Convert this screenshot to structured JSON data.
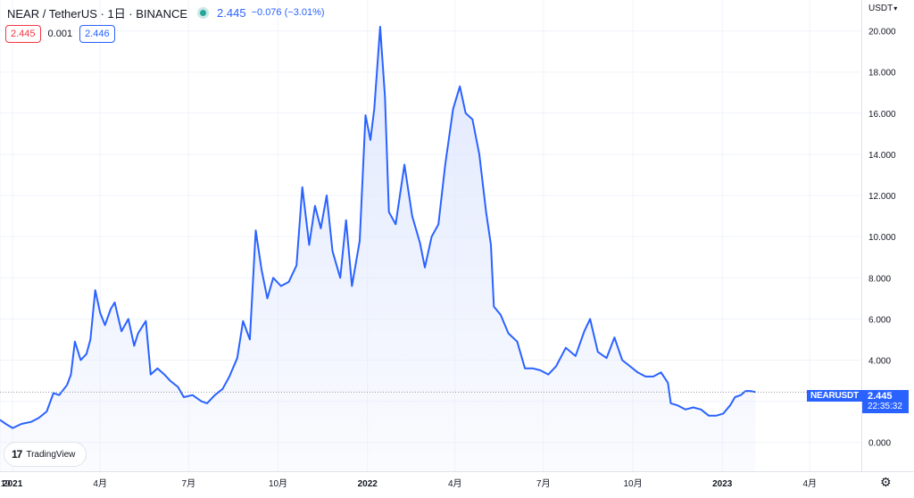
{
  "header": {
    "title": "NEAR / TetherUS · 1日 · BINANCE",
    "last": "2.445",
    "change": "−0.076 (−3.01%)",
    "bid": "2.445",
    "spread": "0.001",
    "ask": "2.446",
    "currency": "USDT"
  },
  "price_badge": {
    "symbol": "NEARUSDT",
    "price": "2.445",
    "countdown": "22:35:32"
  },
  "logo": {
    "mark": "17",
    "text": "TradingView"
  },
  "colors": {
    "line": "#2962ff",
    "fill": "#dfe7fd",
    "down": "#f23645",
    "live_dot": "#26a69a"
  },
  "icons": [
    "status-dot-icon",
    "currency-caret-icon",
    "tradingview-logo-icon",
    "settings-gear-icon"
  ],
  "chart_data": {
    "type": "area",
    "title": "NEAR / TetherUS · 1日 · BINANCE",
    "xlabel": "",
    "ylabel": "",
    "y_ticks": [
      "0.000",
      "2.000",
      "4.000",
      "6.000",
      "8.000",
      "10.000",
      "12.000",
      "14.000",
      "16.000",
      "18.000",
      "20.000"
    ],
    "ylim": [
      -1.4,
      21.5
    ],
    "x_ticks": [
      {
        "label": "19",
        "date": "2020-12-19"
      },
      {
        "label": "2021",
        "date": "2021-01-01"
      },
      {
        "label": "4月",
        "date": "2021-04-01"
      },
      {
        "label": "7月",
        "date": "2021-07-01"
      },
      {
        "label": "10月",
        "date": "2021-10-01"
      },
      {
        "label": "2022",
        "date": "2022-01-01"
      },
      {
        "label": "4月",
        "date": "2022-04-01"
      },
      {
        "label": "7月",
        "date": "2022-07-01"
      },
      {
        "label": "10月",
        "date": "2022-10-01"
      },
      {
        "label": "2023",
        "date": "2023-01-01"
      },
      {
        "label": "4月",
        "date": "2023-04-01"
      }
    ],
    "xlim": [
      "2020-12-19",
      "2023-05-24"
    ],
    "last_price": 2.445,
    "series": [
      {
        "values": [
          [
            "2020-12-19",
            1.1
          ],
          [
            "2020-12-25",
            0.9
          ],
          [
            "2021-01-01",
            0.7
          ],
          [
            "2021-01-10",
            0.9
          ],
          [
            "2021-01-20",
            1.0
          ],
          [
            "2021-01-28",
            1.2
          ],
          [
            "2021-02-05",
            1.5
          ],
          [
            "2021-02-12",
            2.4
          ],
          [
            "2021-02-18",
            2.3
          ],
          [
            "2021-02-26",
            2.8
          ],
          [
            "2021-03-02",
            3.3
          ],
          [
            "2021-03-06",
            4.9
          ],
          [
            "2021-03-12",
            4.0
          ],
          [
            "2021-03-18",
            4.3
          ],
          [
            "2021-03-22",
            5.0
          ],
          [
            "2021-03-27",
            7.4
          ],
          [
            "2021-04-01",
            6.3
          ],
          [
            "2021-04-06",
            5.7
          ],
          [
            "2021-04-12",
            6.5
          ],
          [
            "2021-04-16",
            6.8
          ],
          [
            "2021-04-23",
            5.4
          ],
          [
            "2021-04-30",
            6.0
          ],
          [
            "2021-05-06",
            4.7
          ],
          [
            "2021-05-10",
            5.3
          ],
          [
            "2021-05-14",
            5.6
          ],
          [
            "2021-05-18",
            5.9
          ],
          [
            "2021-05-23",
            3.3
          ],
          [
            "2021-05-30",
            3.6
          ],
          [
            "2021-06-06",
            3.3
          ],
          [
            "2021-06-12",
            3.0
          ],
          [
            "2021-06-20",
            2.7
          ],
          [
            "2021-06-26",
            2.2
          ],
          [
            "2021-07-05",
            2.3
          ],
          [
            "2021-07-14",
            2.0
          ],
          [
            "2021-07-20",
            1.9
          ],
          [
            "2021-07-28",
            2.3
          ],
          [
            "2021-08-05",
            2.6
          ],
          [
            "2021-08-12",
            3.2
          ],
          [
            "2021-08-20",
            4.1
          ],
          [
            "2021-08-26",
            5.9
          ],
          [
            "2021-09-02",
            5.0
          ],
          [
            "2021-09-08",
            10.3
          ],
          [
            "2021-09-14",
            8.4
          ],
          [
            "2021-09-20",
            7.0
          ],
          [
            "2021-09-26",
            8.0
          ],
          [
            "2021-10-04",
            7.6
          ],
          [
            "2021-10-12",
            7.8
          ],
          [
            "2021-10-20",
            8.6
          ],
          [
            "2021-10-26",
            12.4
          ],
          [
            "2021-11-02",
            9.6
          ],
          [
            "2021-11-08",
            11.5
          ],
          [
            "2021-11-14",
            10.4
          ],
          [
            "2021-11-20",
            12.0
          ],
          [
            "2021-11-26",
            9.3
          ],
          [
            "2021-12-04",
            8.0
          ],
          [
            "2021-12-10",
            10.8
          ],
          [
            "2021-12-16",
            7.6
          ],
          [
            "2021-12-24",
            9.8
          ],
          [
            "2021-12-30",
            15.9
          ],
          [
            "2022-01-04",
            14.7
          ],
          [
            "2022-01-08",
            16.2
          ],
          [
            "2022-01-14",
            20.2
          ],
          [
            "2022-01-19",
            16.8
          ],
          [
            "2022-01-23",
            11.2
          ],
          [
            "2022-01-30",
            10.6
          ],
          [
            "2022-02-08",
            13.5
          ],
          [
            "2022-02-16",
            11.0
          ],
          [
            "2022-02-24",
            9.7
          ],
          [
            "2022-03-01",
            8.5
          ],
          [
            "2022-03-08",
            10.0
          ],
          [
            "2022-03-15",
            10.6
          ],
          [
            "2022-03-22",
            13.5
          ],
          [
            "2022-03-30",
            16.2
          ],
          [
            "2022-04-06",
            17.3
          ],
          [
            "2022-04-12",
            16.0
          ],
          [
            "2022-04-19",
            15.7
          ],
          [
            "2022-04-26",
            14.0
          ],
          [
            "2022-05-03",
            11.2
          ],
          [
            "2022-05-08",
            9.6
          ],
          [
            "2022-05-11",
            6.6
          ],
          [
            "2022-05-18",
            6.2
          ],
          [
            "2022-05-26",
            5.3
          ],
          [
            "2022-06-04",
            4.9
          ],
          [
            "2022-06-12",
            3.6
          ],
          [
            "2022-06-20",
            3.6
          ],
          [
            "2022-06-28",
            3.5
          ],
          [
            "2022-07-06",
            3.3
          ],
          [
            "2022-07-14",
            3.7
          ],
          [
            "2022-07-24",
            4.6
          ],
          [
            "2022-08-03",
            4.2
          ],
          [
            "2022-08-12",
            5.4
          ],
          [
            "2022-08-18",
            6.0
          ],
          [
            "2022-08-26",
            4.4
          ],
          [
            "2022-09-04",
            4.1
          ],
          [
            "2022-09-12",
            5.1
          ],
          [
            "2022-09-20",
            4.0
          ],
          [
            "2022-09-28",
            3.7
          ],
          [
            "2022-10-06",
            3.4
          ],
          [
            "2022-10-14",
            3.2
          ],
          [
            "2022-10-22",
            3.2
          ],
          [
            "2022-10-30",
            3.4
          ],
          [
            "2022-11-06",
            2.9
          ],
          [
            "2022-11-09",
            1.9
          ],
          [
            "2022-11-16",
            1.8
          ],
          [
            "2022-11-24",
            1.6
          ],
          [
            "2022-12-02",
            1.7
          ],
          [
            "2022-12-10",
            1.6
          ],
          [
            "2022-12-18",
            1.3
          ],
          [
            "2022-12-26",
            1.3
          ],
          [
            "2023-01-02",
            1.4
          ],
          [
            "2023-01-09",
            1.8
          ],
          [
            "2023-01-14",
            2.2
          ],
          [
            "2023-01-20",
            2.3
          ],
          [
            "2023-01-25",
            2.5
          ],
          [
            "2023-01-30",
            2.5
          ],
          [
            "2023-02-04",
            2.445
          ]
        ]
      }
    ]
  }
}
